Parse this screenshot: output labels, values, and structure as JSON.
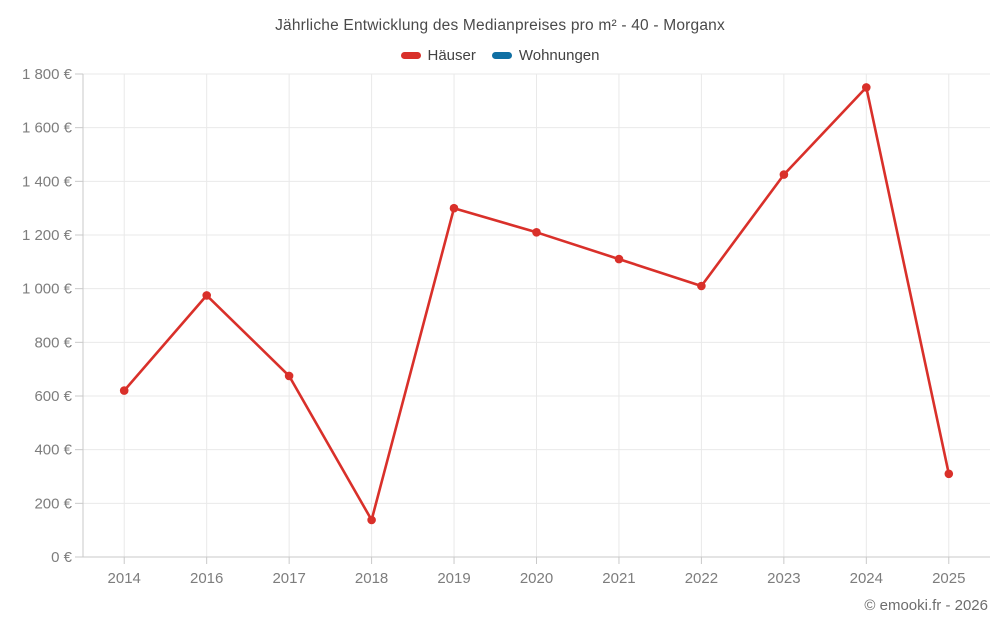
{
  "chart_data": {
    "type": "line",
    "title": "Jährliche Entwicklung des Medianpreises pro m² - 40 - Morganx",
    "source": "© emooki.fr - 2026",
    "categories": [
      "2014",
      "2016",
      "2017",
      "2018",
      "2019",
      "2020",
      "2021",
      "2022",
      "2023",
      "2024",
      "2025"
    ],
    "series": [
      {
        "name": "Häuser",
        "color": "#d9302a",
        "values": [
          620,
          975,
          675,
          138,
          1300,
          1210,
          1110,
          1010,
          1425,
          1750,
          310
        ]
      },
      {
        "name": "Wohnungen",
        "color": "#0f6fa3",
        "values": []
      }
    ],
    "xlabel": "",
    "ylabel": "",
    "ylim": [
      0,
      1800
    ],
    "y_ticks": {
      "values": [
        0,
        200,
        400,
        600,
        800,
        1000,
        1200,
        1400,
        1600,
        1800
      ],
      "labels": [
        "0 €",
        "200 €",
        "400 €",
        "600 €",
        "800 €",
        "1 000 €",
        "1 200 €",
        "1 400 €",
        "1 600 €",
        "1 800 €"
      ]
    },
    "grid": true,
    "legend_position": "top"
  }
}
